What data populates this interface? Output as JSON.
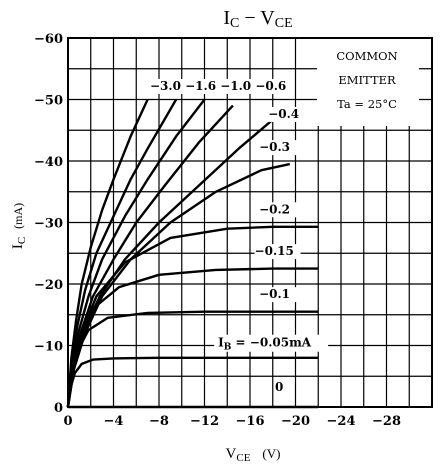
{
  "chart_data": {
    "type": "line",
    "title": {
      "main": "I",
      "sub1": "C",
      "sep": " − V",
      "sub2": "CE"
    },
    "xlabel": {
      "main": "V",
      "sub": "CE",
      "unit": "(V)"
    },
    "ylabel": {
      "main": "I",
      "sub": "C",
      "unit": "(mA)"
    },
    "xlim": [
      0,
      -32
    ],
    "ylim": [
      0,
      -60
    ],
    "x_ticks": [
      {
        "v": 0,
        "label": "0"
      },
      {
        "v": -4,
        "label": "−4"
      },
      {
        "v": -8,
        "label": "−8"
      },
      {
        "v": -12,
        "label": "−12"
      },
      {
        "v": -16,
        "label": "−16"
      },
      {
        "v": -20,
        "label": "−20"
      },
      {
        "v": -24,
        "label": "−24"
      },
      {
        "v": -28,
        "label": "−28"
      }
    ],
    "y_ticks": [
      {
        "v": 0,
        "label": "0"
      },
      {
        "v": -10,
        "label": "−10"
      },
      {
        "v": -20,
        "label": "−20"
      },
      {
        "v": -30,
        "label": "−30"
      },
      {
        "v": -40,
        "label": "−40"
      },
      {
        "v": -50,
        "label": "−50"
      },
      {
        "v": -60,
        "label": "−60"
      }
    ],
    "grid": true,
    "legend_text": {
      "line1": "COMMON",
      "line2": "EMITTER",
      "line3": "Ta = 25°C"
    },
    "curve_labels": {
      "top_group": "−3.0 −1.6 −1.0 −0.6",
      "ib_prefix": "I",
      "ib_sub": "B",
      "ib_text": " = −0.05mA"
    },
    "series": [
      {
        "name": "−3.0",
        "x": [
          0,
          -0.3,
          -0.7,
          -1.2,
          -2,
          -3,
          -4,
          -5.5,
          -7
        ],
        "y": [
          0,
          -8,
          -14,
          -20,
          -26,
          -32,
          -37,
          -44,
          -50
        ]
      },
      {
        "name": "−1.6",
        "x": [
          0,
          -0.3,
          -0.8,
          -1.5,
          -2.5,
          -4,
          -5.5,
          -7,
          -9.5
        ],
        "y": [
          0,
          -7,
          -13,
          -19,
          -25,
          -31,
          -37,
          -42,
          -50
        ]
      },
      {
        "name": "−1.0",
        "x": [
          0,
          -0.3,
          -0.9,
          -1.8,
          -3,
          -5,
          -7,
          -9.5,
          -12
        ],
        "y": [
          0,
          -6,
          -12,
          -18,
          -24,
          -31,
          -37,
          -44,
          -50
        ]
      },
      {
        "name": "−0.6",
        "x": [
          0,
          -0.4,
          -1.1,
          -2.2,
          -4,
          -6,
          -8.5,
          -11.5,
          -14.5
        ],
        "y": [
          0,
          -6,
          -12,
          -18,
          -24,
          -30,
          -36,
          -43,
          -49
        ]
      },
      {
        "name": "−0.4",
        "x": [
          0,
          -0.5,
          -1.3,
          -2.8,
          -5,
          -8,
          -11.5,
          -15,
          -18.5
        ],
        "y": [
          0,
          -6,
          -12,
          -18,
          -24,
          -30,
          -36,
          -42,
          -47.5
        ]
      },
      {
        "name": "−0.3",
        "x": [
          0,
          -0.5,
          -1.5,
          -3,
          -5.5,
          -9,
          -13,
          -17,
          -19.5
        ],
        "y": [
          0,
          -6,
          -12,
          -18,
          -24,
          -30,
          -35,
          -38.5,
          -39.5
        ]
      },
      {
        "name": "−0.2",
        "x": [
          0,
          -0.4,
          -1.2,
          -2.5,
          -5,
          -9,
          -14,
          -18,
          -22
        ],
        "y": [
          0,
          -6,
          -12,
          -18,
          -23.5,
          -27.5,
          -29,
          -29.3,
          -29.3
        ]
      },
      {
        "name": "−0.15",
        "x": [
          0,
          -0.3,
          -1,
          -2.2,
          -4.5,
          -8,
          -13,
          -18,
          -22
        ],
        "y": [
          0,
          -6,
          -11,
          -16,
          -19.5,
          -21.5,
          -22.3,
          -22.5,
          -22.5
        ]
      },
      {
        "name": "−0.1",
        "x": [
          0,
          -0.3,
          -0.8,
          -1.8,
          -3.5,
          -7,
          -12,
          -17,
          -22
        ],
        "y": [
          0,
          -5,
          -9,
          -12.5,
          -14.5,
          -15.3,
          -15.5,
          -15.5,
          -15.5
        ]
      },
      {
        "name": "−0.05",
        "x": [
          0,
          -0.2,
          -0.6,
          -1.2,
          -2.2,
          -4,
          -8,
          -14,
          -22
        ],
        "y": [
          0,
          -3,
          -5.5,
          -7,
          -7.7,
          -7.9,
          -8,
          -8,
          -8
        ]
      },
      {
        "name": "0",
        "x": [
          0,
          -22
        ],
        "y": [
          0,
          0
        ]
      }
    ]
  }
}
